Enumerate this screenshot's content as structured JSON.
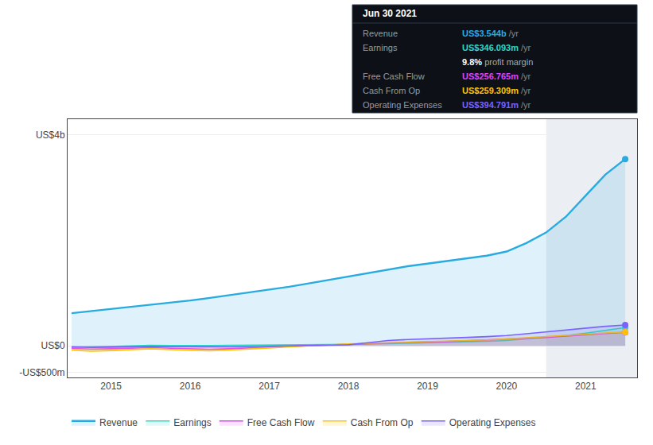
{
  "chart_data": {
    "type": "area",
    "x": [
      2014.5,
      2014.75,
      2015.0,
      2015.25,
      2015.5,
      2015.75,
      2016.0,
      2016.25,
      2016.5,
      2016.75,
      2017.0,
      2017.25,
      2017.5,
      2017.75,
      2018.0,
      2018.25,
      2018.5,
      2018.75,
      2019.0,
      2019.25,
      2019.5,
      2019.75,
      2020.0,
      2020.25,
      2020.5,
      2020.75,
      2021.0,
      2021.25,
      2021.5
    ],
    "series": [
      {
        "name": "Revenue",
        "color": "#29abe2",
        "values": [
          620,
          660,
          690,
          730,
          770,
          810,
          860,
          910,
          960,
          1010,
          1060,
          1120,
          1185,
          1250,
          1310,
          1380,
          1450,
          1510,
          1560,
          1610,
          1670,
          1710,
          1790,
          1950,
          2150,
          2450,
          2850,
          3250,
          3544
        ]
      },
      {
        "name": "Earnings",
        "color": "#2ed9c3",
        "values": [
          -30,
          -20,
          -10,
          5,
          10,
          5,
          0,
          5,
          8,
          10,
          12,
          15,
          18,
          22,
          28,
          35,
          42,
          50,
          55,
          65,
          75,
          85,
          100,
          130,
          160,
          195,
          240,
          295,
          346
        ]
      },
      {
        "name": "Free Cash Flow",
        "color": "#e040fb",
        "values": [
          -50,
          -60,
          -55,
          -45,
          -35,
          -45,
          -55,
          -65,
          -55,
          -45,
          -25,
          -10,
          5,
          20,
          35,
          45,
          55,
          65,
          70,
          80,
          95,
          110,
          120,
          140,
          160,
          185,
          210,
          235,
          257
        ]
      },
      {
        "name": "Cash From Op",
        "color": "#ffc107",
        "values": [
          -80,
          -100,
          -90,
          -70,
          -55,
          -70,
          -85,
          -95,
          -80,
          -65,
          -40,
          -20,
          0,
          20,
          38,
          48,
          58,
          70,
          78,
          88,
          100,
          112,
          130,
          155,
          175,
          200,
          225,
          245,
          259
        ]
      },
      {
        "name": "Operating Expenses",
        "color": "#7b61ff",
        "values": [
          -20,
          -30,
          -25,
          -15,
          -10,
          -15,
          -20,
          -25,
          -20,
          -15,
          -10,
          -5,
          0,
          10,
          20,
          60,
          100,
          120,
          130,
          145,
          160,
          175,
          195,
          230,
          265,
          305,
          335,
          370,
          395
        ]
      }
    ],
    "xlim": [
      2014.45,
      2021.65
    ],
    "xticks": [
      2015,
      2016,
      2017,
      2018,
      2019,
      2020,
      2021
    ],
    "ylim": [
      -600,
      4300
    ],
    "yticks": [
      {
        "value": 4000,
        "label": "US$4b"
      },
      {
        "value": 0,
        "label": "US$0"
      },
      {
        "value": -500,
        "label": "-US$500m"
      }
    ],
    "highlight_start": 2020.5,
    "grid": true,
    "legend": "bottom",
    "annotations": {
      "heading": "Jun 30 2021",
      "rows": [
        {
          "label": "Revenue",
          "value": "US$3.544b",
          "suffix": " /yr",
          "color": "#29abe2"
        },
        {
          "label": "Earnings",
          "value": "US$346.093m",
          "suffix": " /yr",
          "color": "#2ed9c3"
        },
        {
          "value": "9.8%",
          "suffix": " profit margin",
          "color": "#ffffff"
        },
        {
          "label": "Free Cash Flow",
          "value": "US$256.765m",
          "suffix": " /yr",
          "color": "#e040fb"
        },
        {
          "label": "Cash From Op",
          "value": "US$259.309m",
          "suffix": " /yr",
          "color": "#ffc107"
        },
        {
          "label": "Operating Expenses",
          "value": "US$394.791m",
          "suffix": " /yr",
          "color": "#7b61ff"
        }
      ]
    }
  }
}
